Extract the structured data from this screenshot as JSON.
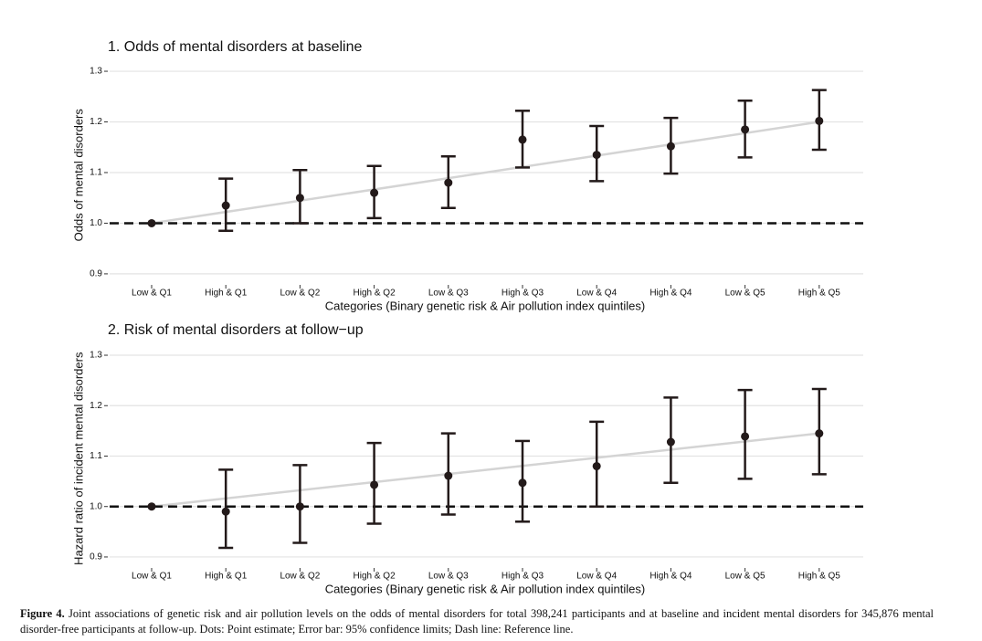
{
  "chart_data": [
    {
      "type": "errorbar",
      "title": "1. Odds of mental disorders at baseline",
      "xlabel": "Categories (Binary genetic risk & Air pollution index quintiles)",
      "ylabel": "Odds of mental disorders",
      "categories": [
        "Low & Q1",
        "High & Q1",
        "Low & Q2",
        "High & Q2",
        "Low & Q3",
        "High & Q3",
        "Low & Q4",
        "High & Q4",
        "Low & Q5",
        "High & Q5"
      ],
      "values": [
        1.0,
        1.035,
        1.05,
        1.06,
        1.08,
        1.165,
        1.135,
        1.152,
        1.185,
        1.202
      ],
      "lower": [
        null,
        0.985,
        1.0,
        1.01,
        1.03,
        1.11,
        1.083,
        1.098,
        1.13,
        1.145
      ],
      "upper": [
        null,
        1.088,
        1.105,
        1.113,
        1.132,
        1.222,
        1.192,
        1.208,
        1.242,
        1.263
      ],
      "trend": [
        1.0,
        1.2
      ],
      "reference": 1,
      "ylim": [
        0.88,
        1.31
      ],
      "yticks": [
        0.9,
        {
          "value": 1,
          "label": "1.0"
        },
        1.1,
        1.2,
        1.3
      ],
      "grid": true,
      "color": "#231a1a"
    },
    {
      "type": "errorbar",
      "title": "2. Risk of mental disorders at follow−up",
      "xlabel": "Categories (Binary genetic risk & Air pollution index quintiles)",
      "ylabel": "Hazard ratio of incident mental disorders",
      "categories": [
        "Low & Q1",
        "High & Q1",
        "Low & Q2",
        "High & Q2",
        "Low & Q3",
        "High & Q3",
        "Low & Q4",
        "High & Q4",
        "Low & Q5",
        "High & Q5"
      ],
      "values": [
        1.0,
        0.99,
        1.0,
        1.043,
        1.061,
        1.047,
        1.08,
        1.128,
        1.139,
        1.145
      ],
      "lower": [
        null,
        0.918,
        0.928,
        0.966,
        0.984,
        0.97,
        1.0,
        1.047,
        1.055,
        1.064
      ],
      "upper": [
        null,
        1.073,
        1.082,
        1.126,
        1.145,
        1.13,
        1.168,
        1.216,
        1.231,
        1.233
      ],
      "trend": [
        1.0,
        1.145
      ],
      "reference": 1,
      "ylim": [
        0.88,
        1.31
      ],
      "yticks": [
        0.9,
        {
          "value": 1,
          "label": "1.0"
        },
        1.1,
        1.2,
        1.3
      ],
      "grid": true,
      "color": "#231a1a"
    }
  ],
  "caption": {
    "label": "Figure 4.",
    "text": "Joint associations of genetic risk and air pollution levels on the odds of mental disorders for total 398,241 participants and at baseline and incident mental disorders for 345,876 mental disorder-free participants at follow-up. Dots: Point estimate; Error bar: 95% confidence limits; Dash line: Reference line."
  }
}
